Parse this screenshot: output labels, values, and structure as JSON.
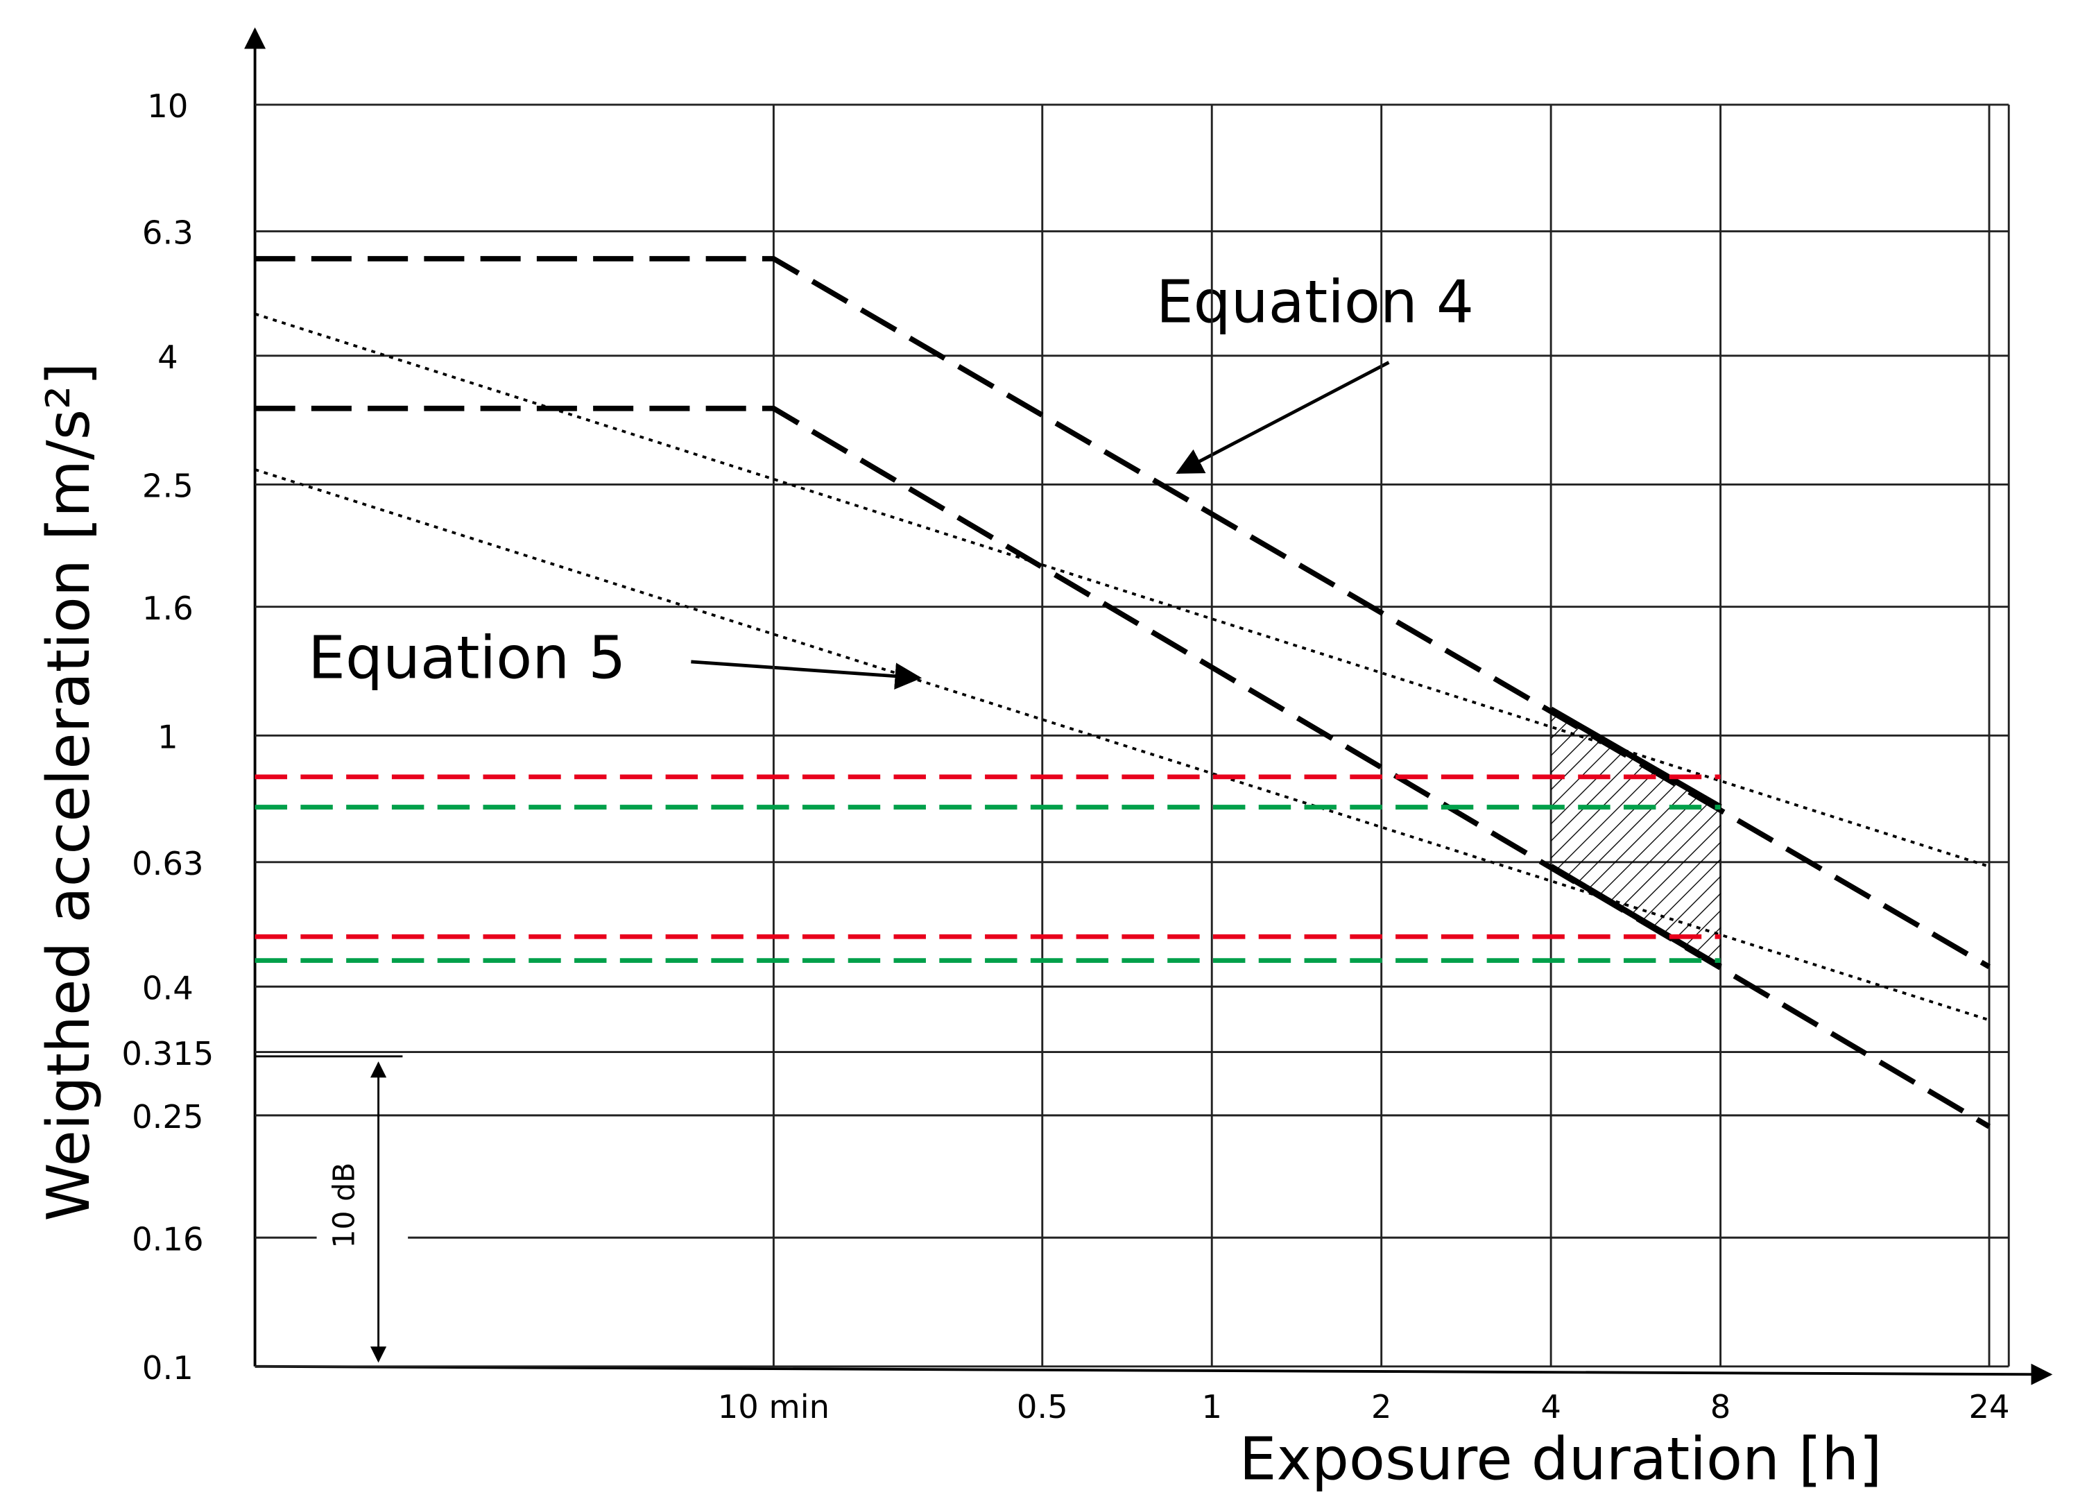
{
  "chart_data": {
    "type": "line",
    "xlabel": "Exposure duration [h]",
    "ylabel": "Weigthed acceleration [m/s²]",
    "xscale": "log",
    "yscale": "log",
    "grid": true,
    "xlim": [
      0.02,
      26
    ],
    "ylim": [
      0.1,
      10
    ],
    "xticks": [
      {
        "value": 0.1667,
        "label": "10 min"
      },
      0.5,
      1,
      2,
      4,
      8,
      24
    ],
    "yticks": [
      0.1,
      0.16,
      0.25,
      0.315,
      0.4,
      0.63,
      1,
      1.6,
      2.5,
      4,
      6.3,
      10
    ],
    "series": [
      {
        "color": "#000000",
        "style": "dashed",
        "x": [
          0.02,
          0.1667,
          24
        ],
        "values": [
          5.7,
          5.7,
          0.43
        ]
      },
      {
        "color": "#000000",
        "style": "dashed",
        "x": [
          0.02,
          0.1667,
          24
        ],
        "values": [
          3.3,
          3.3,
          0.24
        ]
      },
      {
        "color": "#000000",
        "style": "solid",
        "x": [
          4,
          8
        ],
        "values": [
          1.1,
          0.77
        ]
      },
      {
        "color": "#000000",
        "style": "solid",
        "x": [
          4,
          8
        ],
        "values": [
          0.62,
          0.43
        ]
      },
      {
        "color": "#000000",
        "style": "dotted",
        "x": [
          0.02,
          24
        ],
        "values": [
          4.66,
          0.62
        ]
      },
      {
        "color": "#000000",
        "style": "dotted",
        "x": [
          0.02,
          24
        ],
        "values": [
          2.64,
          0.354
        ]
      },
      {
        "color": "#e8001c",
        "style": "dashed",
        "x": [
          0.02,
          8
        ],
        "values": [
          0.86,
          0.86
        ]
      },
      {
        "color": "#e8001c",
        "style": "dashed",
        "x": [
          0.02,
          8
        ],
        "values": [
          0.48,
          0.48
        ]
      },
      {
        "color": "#00a04a",
        "style": "dashed",
        "x": [
          0.02,
          8
        ],
        "values": [
          0.77,
          0.77
        ]
      },
      {
        "color": "#00a04a",
        "style": "dashed",
        "x": [
          0.02,
          8
        ],
        "values": [
          0.44,
          0.44
        ]
      }
    ],
    "caution_zone": {
      "x": [
        4,
        8
      ],
      "upper": [
        1.1,
        0.77
      ],
      "lower": [
        0.62,
        0.43
      ]
    },
    "annotations": [
      "Equation 4",
      "Equation 5",
      "10 dB"
    ]
  }
}
